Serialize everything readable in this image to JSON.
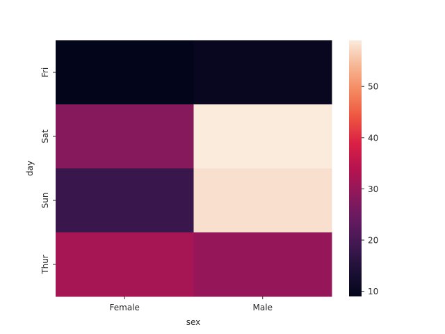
{
  "chart_data": {
    "type": "heatmap",
    "title": "",
    "xlabel": "sex",
    "ylabel": "day",
    "x_categories": [
      "Female",
      "Male"
    ],
    "y_categories": [
      "Fri",
      "Sat",
      "Sun",
      "Thur"
    ],
    "values": [
      [
        9,
        10
      ],
      [
        28,
        59
      ],
      [
        18,
        58
      ],
      [
        32,
        30
      ]
    ],
    "colorbar": {
      "vmin": 9,
      "vmax": 59,
      "ticks": [
        10,
        20,
        30,
        40,
        50
      ],
      "colormap": "rocket"
    }
  }
}
